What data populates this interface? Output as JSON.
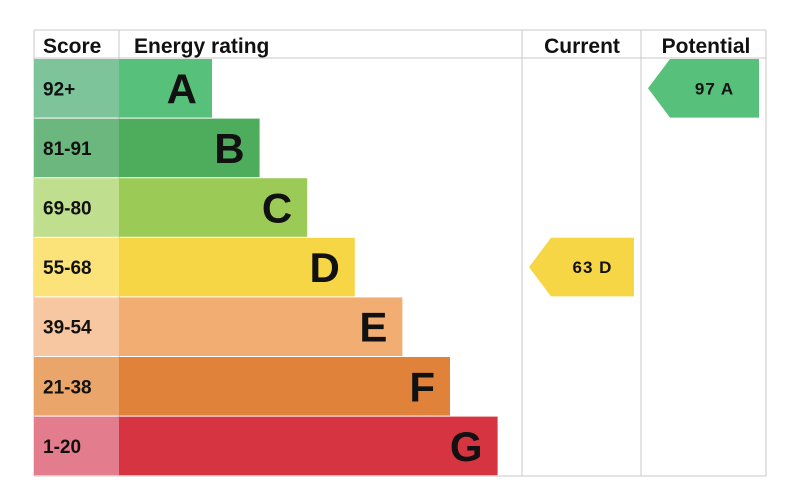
{
  "chart_data": {
    "type": "bar",
    "title": "",
    "headers": {
      "score": "Score",
      "rating": "Energy rating",
      "current": "Current",
      "potential": "Potential"
    },
    "bands": [
      {
        "letter": "A",
        "range": "92+",
        "score_color": "#7dc49a",
        "bar_color": "#57c17c",
        "level": 1
      },
      {
        "letter": "B",
        "range": "81-91",
        "score_color": "#6cb77d",
        "bar_color": "#4eac5d",
        "level": 2
      },
      {
        "letter": "C",
        "range": "69-80",
        "score_color": "#bfdf8f",
        "bar_color": "#9bcb56",
        "level": 3
      },
      {
        "letter": "D",
        "range": "55-68",
        "score_color": "#fbe37a",
        "bar_color": "#f6d645",
        "level": 4
      },
      {
        "letter": "E",
        "range": "39-54",
        "score_color": "#f6c7a0",
        "bar_color": "#f1ad72",
        "level": 5
      },
      {
        "letter": "F",
        "range": "21-38",
        "score_color": "#eaa66a",
        "bar_color": "#e0823a",
        "level": 6
      },
      {
        "letter": "G",
        "range": "1-20",
        "score_color": "#e37c8c",
        "bar_color": "#d73441",
        "level": 7
      }
    ],
    "current": {
      "value": 63,
      "letter": "D",
      "label": "63  D",
      "color": "#f6d645"
    },
    "potential": {
      "value": 97,
      "letter": "A",
      "label": "97  A",
      "color": "#57c17c"
    }
  }
}
